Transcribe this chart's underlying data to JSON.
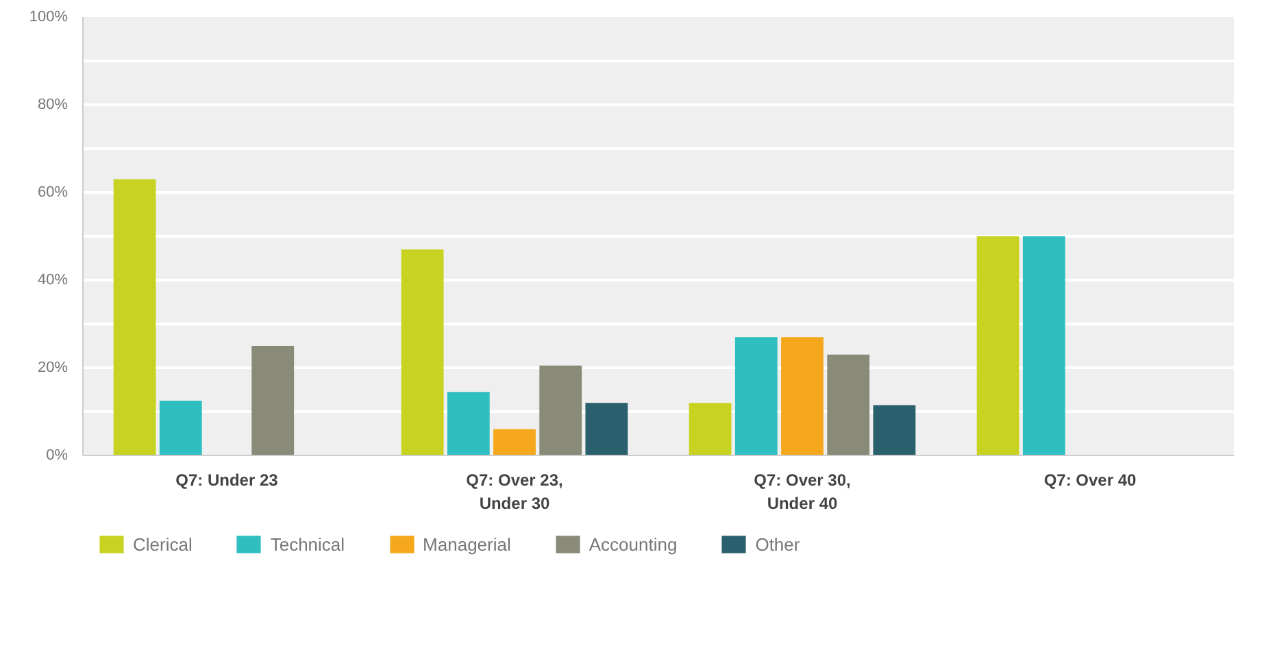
{
  "chart_data": {
    "type": "bar",
    "categories": [
      "Q7: Under 23",
      "Q7: Over 23, Under 30",
      "Q7: Over 30, Under 40",
      "Q7: Over 40"
    ],
    "series": [
      {
        "name": "Clerical",
        "color": "#c8d321",
        "values": [
          63,
          47,
          12,
          50
        ]
      },
      {
        "name": "Technical",
        "color": "#2fbfc0",
        "values": [
          12.5,
          14.5,
          27,
          50
        ]
      },
      {
        "name": "Managerial",
        "color": "#f5a81c",
        "values": [
          0,
          6,
          27,
          0
        ]
      },
      {
        "name": "Accounting",
        "color": "#8a8a78",
        "values": [
          25,
          20.5,
          23,
          0
        ]
      },
      {
        "name": "Other",
        "color": "#2a5f6e",
        "values": [
          0,
          12,
          11.5,
          0
        ]
      }
    ],
    "ylim": [
      0,
      100
    ],
    "yticks": [
      {
        "value": 0,
        "label": "0%"
      },
      {
        "value": 10,
        "label": null
      },
      {
        "value": 20,
        "label": "20%"
      },
      {
        "value": 30,
        "label": null
      },
      {
        "value": 40,
        "label": "40%"
      },
      {
        "value": 50,
        "label": null
      },
      {
        "value": 60,
        "label": "60%"
      },
      {
        "value": 70,
        "label": null
      },
      {
        "value": 80,
        "label": "80%"
      },
      {
        "value": 90,
        "label": null
      },
      {
        "value": 100,
        "label": "100%"
      }
    ],
    "grid": "y",
    "legend": "bottom"
  }
}
